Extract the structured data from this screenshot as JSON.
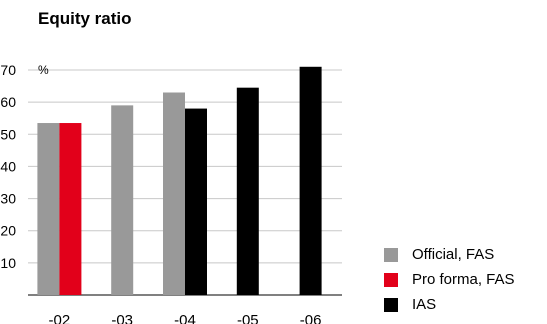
{
  "title": "Equity ratio",
  "chart_data": {
    "type": "bar",
    "title": "Equity ratio",
    "ylabel": "%",
    "xlabel": "",
    "ylim": [
      0,
      70
    ],
    "yticks": [
      10,
      20,
      30,
      40,
      50,
      60,
      70
    ],
    "grid": true,
    "legend_position": "bottom-right",
    "categories": [
      "-02",
      "-03",
      "-04",
      "-05",
      "-06"
    ],
    "series": [
      {
        "name": "Official, FAS",
        "color": "#999999",
        "values": [
          53.5,
          59,
          63,
          null,
          null
        ]
      },
      {
        "name": "Pro forma, FAS",
        "color": "#e2001a",
        "values": [
          53.5,
          null,
          null,
          null,
          null
        ]
      },
      {
        "name": "IAS",
        "color": "#000000",
        "values": [
          null,
          null,
          58,
          64.5,
          71
        ]
      }
    ]
  }
}
